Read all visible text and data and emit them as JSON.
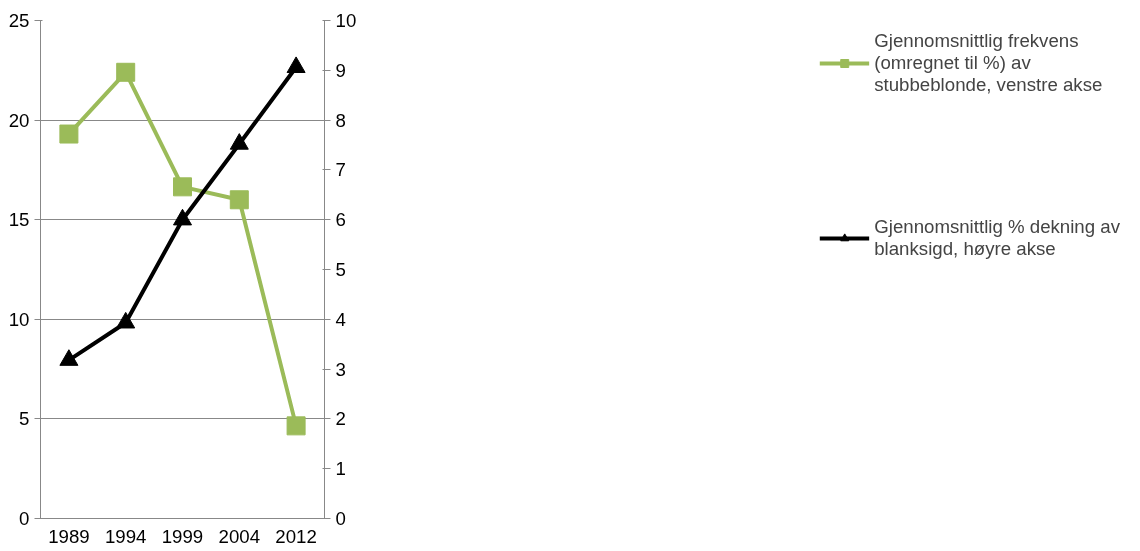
{
  "chart_data": {
    "type": "line",
    "categories": [
      "1989",
      "1994",
      "1999",
      "2004",
      "2012"
    ],
    "series": [
      {
        "name": "Gjennomsnittlig frekvens (omregnet til %) av stubbeblonde, venstre akse",
        "color": "#9bbb59",
        "values": [
          19.3,
          22.4,
          16.65,
          16.0,
          4.65
        ],
        "marker": "square"
      },
      {
        "name": "Gjennomsnittlig % dekning av blanksigd, høyre akse",
        "color": "#000000",
        "values": [
          3.18,
          3.93,
          6.0,
          7.52,
          9.06
        ],
        "marker": "triangle",
        "axis": "y2"
      }
    ],
    "ylim": [
      0,
      25
    ],
    "yticks": [
      0,
      5,
      10,
      15,
      20,
      25
    ],
    "y2lim": [
      0,
      10
    ],
    "y2ticks": [
      0,
      1,
      2,
      3,
      4,
      5,
      6,
      7,
      8,
      9,
      10
    ],
    "grid": "y",
    "legend": "right",
    "line_style": "solid"
  }
}
